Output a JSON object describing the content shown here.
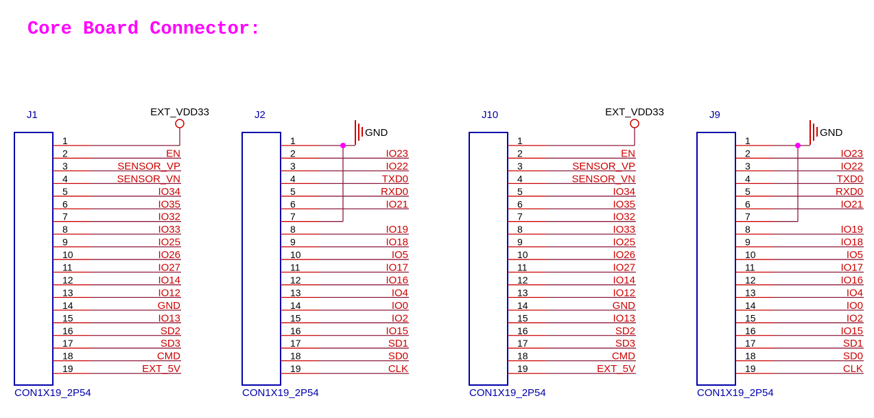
{
  "title": "Core Board Connector:",
  "colors": {
    "title": "#ff00ff",
    "body_outline": "#0000aa",
    "designator": "#0000aa",
    "pin_line": "#cc0000",
    "pin_number": "#000000",
    "net_label": "#cc0000",
    "wire": "#8b1a3a",
    "power_symbol": "#cc0000",
    "junction": "#ff00ff"
  },
  "connectors": [
    {
      "ref": "J1",
      "footprint": "CON1X19_2P54",
      "power": {
        "type": "vdd",
        "label": "EXT_VDD33",
        "pin": 1
      },
      "pins": [
        {
          "num": "1",
          "net": ""
        },
        {
          "num": "2",
          "net": "EN"
        },
        {
          "num": "3",
          "net": "SENSOR_VP"
        },
        {
          "num": "4",
          "net": "SENSOR_VN"
        },
        {
          "num": "5",
          "net": "IO34"
        },
        {
          "num": "6",
          "net": "IO35"
        },
        {
          "num": "7",
          "net": "IO32"
        },
        {
          "num": "8",
          "net": "IO33"
        },
        {
          "num": "9",
          "net": "IO25"
        },
        {
          "num": "10",
          "net": "IO26"
        },
        {
          "num": "11",
          "net": "IO27"
        },
        {
          "num": "12",
          "net": "IO14"
        },
        {
          "num": "13",
          "net": "IO12"
        },
        {
          "num": "14",
          "net": "GND"
        },
        {
          "num": "15",
          "net": "IO13"
        },
        {
          "num": "16",
          "net": "SD2"
        },
        {
          "num": "17",
          "net": "SD3"
        },
        {
          "num": "18",
          "net": "CMD"
        },
        {
          "num": "19",
          "net": "EXT_5V"
        }
      ]
    },
    {
      "ref": "J2",
      "footprint": "CON1X19_2P54",
      "power": {
        "type": "gnd",
        "label": "GND",
        "pins": [
          1,
          7
        ]
      },
      "pins": [
        {
          "num": "1",
          "net": ""
        },
        {
          "num": "2",
          "net": "IO23"
        },
        {
          "num": "3",
          "net": "IO22"
        },
        {
          "num": "4",
          "net": "TXD0"
        },
        {
          "num": "5",
          "net": "RXD0"
        },
        {
          "num": "6",
          "net": "IO21"
        },
        {
          "num": "7",
          "net": ""
        },
        {
          "num": "8",
          "net": "IO19"
        },
        {
          "num": "9",
          "net": "IO18"
        },
        {
          "num": "10",
          "net": "IO5"
        },
        {
          "num": "11",
          "net": "IO17"
        },
        {
          "num": "12",
          "net": "IO16"
        },
        {
          "num": "13",
          "net": "IO4"
        },
        {
          "num": "14",
          "net": "IO0"
        },
        {
          "num": "15",
          "net": "IO2"
        },
        {
          "num": "16",
          "net": "IO15"
        },
        {
          "num": "17",
          "net": "SD1"
        },
        {
          "num": "18",
          "net": "SD0"
        },
        {
          "num": "19",
          "net": "CLK"
        }
      ]
    },
    {
      "ref": "J10",
      "footprint": "CON1X19_2P54",
      "power": {
        "type": "vdd",
        "label": "EXT_VDD33",
        "pin": 1
      },
      "pins": [
        {
          "num": "1",
          "net": ""
        },
        {
          "num": "2",
          "net": "EN"
        },
        {
          "num": "3",
          "net": "SENSOR_VP"
        },
        {
          "num": "4",
          "net": "SENSOR_VN"
        },
        {
          "num": "5",
          "net": "IO34"
        },
        {
          "num": "6",
          "net": "IO35"
        },
        {
          "num": "7",
          "net": "IO32"
        },
        {
          "num": "8",
          "net": "IO33"
        },
        {
          "num": "9",
          "net": "IO25"
        },
        {
          "num": "10",
          "net": "IO26"
        },
        {
          "num": "11",
          "net": "IO27"
        },
        {
          "num": "12",
          "net": "IO14"
        },
        {
          "num": "13",
          "net": "IO12"
        },
        {
          "num": "14",
          "net": "GND"
        },
        {
          "num": "15",
          "net": "IO13"
        },
        {
          "num": "16",
          "net": "SD2"
        },
        {
          "num": "17",
          "net": "SD3"
        },
        {
          "num": "18",
          "net": "CMD"
        },
        {
          "num": "19",
          "net": "EXT_5V"
        }
      ]
    },
    {
      "ref": "J9",
      "footprint": "CON1X19_2P54",
      "power": {
        "type": "gnd",
        "label": "GND",
        "pins": [
          1,
          7
        ]
      },
      "pins": [
        {
          "num": "1",
          "net": ""
        },
        {
          "num": "2",
          "net": "IO23"
        },
        {
          "num": "3",
          "net": "IO22"
        },
        {
          "num": "4",
          "net": "TXD0"
        },
        {
          "num": "5",
          "net": "RXD0"
        },
        {
          "num": "6",
          "net": "IO21"
        },
        {
          "num": "7",
          "net": ""
        },
        {
          "num": "8",
          "net": "IO19"
        },
        {
          "num": "9",
          "net": "IO18"
        },
        {
          "num": "10",
          "net": "IO5"
        },
        {
          "num": "11",
          "net": "IO17"
        },
        {
          "num": "12",
          "net": "IO16"
        },
        {
          "num": "13",
          "net": "IO4"
        },
        {
          "num": "14",
          "net": "IO0"
        },
        {
          "num": "15",
          "net": "IO2"
        },
        {
          "num": "16",
          "net": "IO15"
        },
        {
          "num": "17",
          "net": "SD1"
        },
        {
          "num": "18",
          "net": "SD0"
        },
        {
          "num": "19",
          "net": "CLK"
        }
      ]
    }
  ]
}
